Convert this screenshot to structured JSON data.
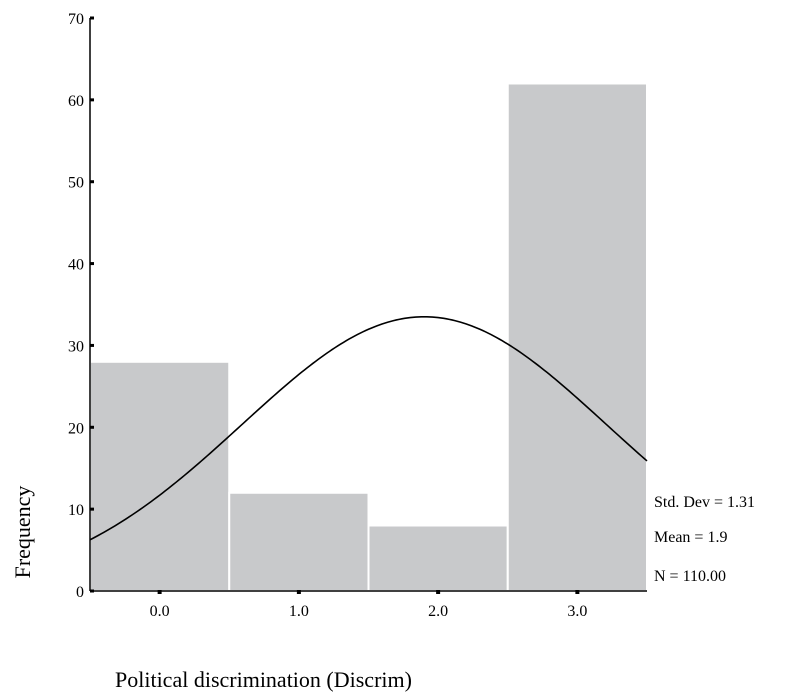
{
  "chart_data": {
    "type": "bar",
    "title": "",
    "xlabel": "Political discrimination (Discrim)",
    "ylabel": "Frequency",
    "categories": [
      "0.0",
      "1.0",
      "2.0",
      "3.0"
    ],
    "values": [
      28,
      12,
      8,
      62
    ],
    "ylim": [
      0,
      70
    ],
    "xlim": [
      -0.5,
      3.5
    ],
    "yticks": [
      0,
      10,
      20,
      30,
      40,
      50,
      60,
      70
    ],
    "xticks": [
      0,
      1,
      2,
      3
    ],
    "grid": false,
    "normal_curve": {
      "mean": 1.9,
      "std": 1.31,
      "n": 110,
      "bin_width": 1
    },
    "stats": [
      "Std. Dev = 1.31",
      "Mean = 1.9",
      "N = 110.00"
    ],
    "colors": {
      "bar": "#c8c9cb",
      "bar_edge": "#ffffff",
      "curve": "#000000",
      "axis": "#000000"
    }
  }
}
